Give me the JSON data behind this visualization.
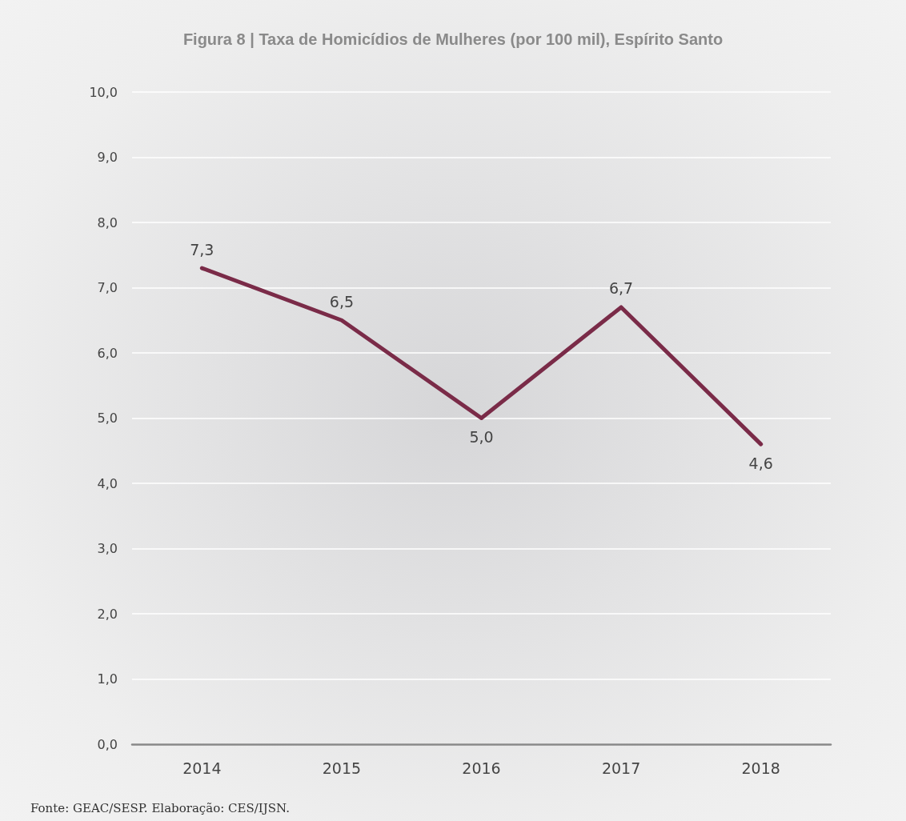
{
  "chart_data": {
    "type": "line",
    "title": "Figura 8 | Taxa de Homicídios de Mulheres (por 100 mil), Espírito Santo",
    "categories": [
      "2014",
      "2015",
      "2016",
      "2017",
      "2018"
    ],
    "series": [
      {
        "color": "#7a2b48",
        "values": [
          7.3,
          6.5,
          5.0,
          6.7,
          4.6
        ],
        "value_labels": [
          "7,3",
          "6,5",
          "5,0",
          "6,7",
          "4,6"
        ]
      }
    ],
    "ylim": [
      0,
      10
    ],
    "yticks": [
      {
        "value": 0,
        "label": "0,0"
      },
      {
        "value": 1,
        "label": "1,0"
      },
      {
        "value": 2,
        "label": "2,0"
      },
      {
        "value": 3,
        "label": "3,0"
      },
      {
        "value": 4,
        "label": "4,0"
      },
      {
        "value": 5,
        "label": "5,0"
      },
      {
        "value": 6,
        "label": "6,0"
      },
      {
        "value": 7,
        "label": "7,0"
      },
      {
        "value": 8,
        "label": "8,0"
      },
      {
        "value": 9,
        "label": "9,0"
      },
      {
        "value": 10,
        "label": "10,0"
      }
    ],
    "grid": "y",
    "marker": "none",
    "line_style": "solid",
    "annotations": [
      "Fonte: GEAC/SESP. Elaboração: CES/IJSN."
    ]
  }
}
